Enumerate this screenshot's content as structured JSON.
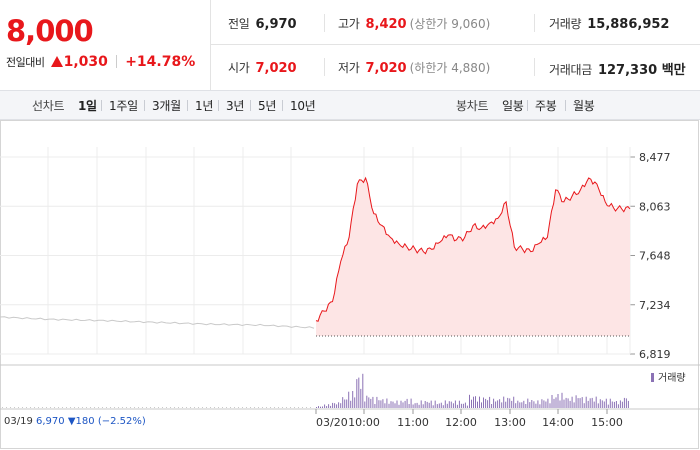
{
  "quote": {
    "price": "8,000",
    "change_label": "전일대비",
    "change_value": "1,030",
    "change_rate": "+14.78%"
  },
  "stats": {
    "prev_close": {
      "label": "전일",
      "value": "6,970"
    },
    "open": {
      "label": "시가",
      "value": "7,020"
    },
    "high": {
      "label": "고가",
      "value": "8,420",
      "limit_text": "(상한가 9,060)"
    },
    "low": {
      "label": "저가",
      "value": "7,020",
      "limit_text": "(하한가 4,880)"
    },
    "volume": {
      "label": "거래량",
      "value": "15,886,952"
    },
    "amount": {
      "label": "거래대금",
      "value": "127,330 백만"
    }
  },
  "period_bar": {
    "label": "선차트",
    "items": [
      "1일",
      "1주일",
      "3개월",
      "1년",
      "3년",
      "5년",
      "10년"
    ],
    "selected": "1일",
    "candle_label": "봉차트",
    "candle_items": [
      "일봉",
      "주봉",
      "월봉"
    ]
  },
  "chart_data": {
    "type": "line",
    "y_ticks": [
      "8,477",
      "8,063",
      "7,648",
      "7,234",
      "6,819"
    ],
    "ylim": [
      6819,
      8477
    ],
    "x_ticks": [
      "03/19",
      "03/20",
      "10:00",
      "11:00",
      "12:00",
      "13:00",
      "14:00",
      "15:00"
    ],
    "prev_day_series": {
      "x": [
        "09:00",
        "10:00",
        "11:00",
        "12:00",
        "13:00",
        "14:00",
        "15:00"
      ],
      "values": [
        7130,
        7110,
        7100,
        7085,
        7070,
        7062,
        7040
      ]
    },
    "series": [
      {
        "x": [
          "09:00",
          "09:10",
          "09:20",
          "09:30",
          "09:40",
          "09:50",
          "10:00",
          "10:10",
          "10:20",
          "10:30",
          "10:40",
          "10:50",
          "11:00",
          "11:10",
          "11:20",
          "11:30",
          "11:40",
          "11:50",
          "12:00",
          "12:10",
          "12:20",
          "12:30",
          "12:40",
          "12:50",
          "13:00",
          "13:10",
          "13:20",
          "13:30",
          "13:40",
          "13:50",
          "14:00",
          "14:10",
          "14:20",
          "14:30",
          "14:40",
          "14:50",
          "15:00",
          "15:10",
          "15:20"
        ],
        "values": [
          7100,
          7180,
          7260,
          7600,
          7800,
          8250,
          8300,
          8000,
          7900,
          7800,
          7750,
          7720,
          7700,
          7680,
          7700,
          7760,
          7820,
          7780,
          7800,
          7900,
          7880,
          7920,
          7960,
          8100,
          7720,
          7700,
          7680,
          7750,
          7800,
          8200,
          8100,
          8150,
          8200,
          8300,
          8250,
          8100,
          8050,
          8040,
          8040
        ]
      }
    ],
    "baseline": 6970,
    "volume_legend": "거래량",
    "volume": [
      0.05,
      0.1,
      0.15,
      0.3,
      0.45,
      0.9,
      0.35,
      0.3,
      0.25,
      0.2,
      0.2,
      0.25,
      0.15,
      0.2,
      0.2,
      0.15,
      0.2,
      0.2,
      0.15,
      0.35,
      0.3,
      0.3,
      0.25,
      0.3,
      0.3,
      0.2,
      0.25,
      0.2,
      0.25,
      0.35,
      0.4,
      0.3,
      0.35,
      0.3,
      0.3,
      0.25,
      0.25,
      0.2,
      0.3
    ]
  },
  "prev_info": {
    "date": "03/19",
    "close": "6,970",
    "change": "180",
    "rate": "(−2.52%)"
  },
  "colors": {
    "up": "#e8171b",
    "down": "#1d56c4",
    "fill": "#fde5e5",
    "volume": "#8b72b5"
  }
}
